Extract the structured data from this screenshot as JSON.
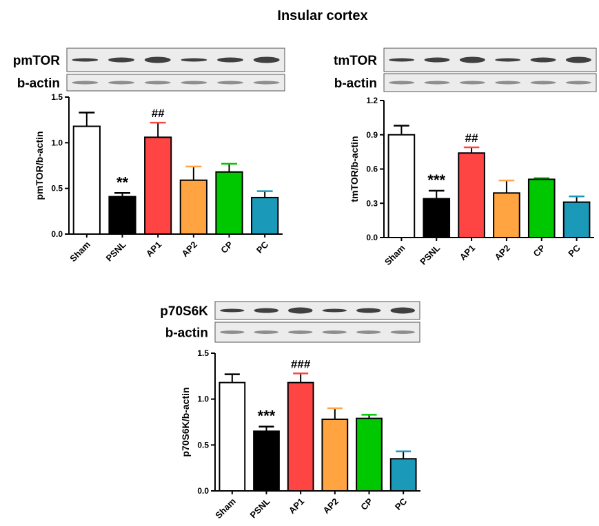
{
  "title": "Insular cortex",
  "chart_data": [
    {
      "type": "bar",
      "blot_labels": [
        "pmTOR",
        "b-actin"
      ],
      "ylabel": "pmTOR/b-actin",
      "categories": [
        "Sham",
        "PSNL",
        "AP1",
        "AP2",
        "CP",
        "PC"
      ],
      "values": [
        1.18,
        0.41,
        1.06,
        0.59,
        0.68,
        0.4
      ],
      "errors": [
        0.15,
        0.04,
        0.16,
        0.15,
        0.09,
        0.07
      ],
      "annotations": [
        null,
        "**",
        "##",
        null,
        null,
        null
      ],
      "colors": [
        "#ffffff",
        "#000000",
        "#ff4444",
        "#ffa440",
        "#00c800",
        "#1a9ab8"
      ],
      "ylim": [
        0,
        1.5
      ],
      "yticks": [
        {
          "value": 0,
          "label": "0.0"
        },
        0.5,
        {
          "value": 1,
          "label": "1.0"
        },
        1.5
      ]
    },
    {
      "type": "bar",
      "blot_labels": [
        "tmTOR",
        "b-actin"
      ],
      "ylabel": "tmTOR/b-actin",
      "categories": [
        "Sham",
        "PSNL",
        "AP1",
        "AP2",
        "CP",
        "PC"
      ],
      "values": [
        0.9,
        0.34,
        0.74,
        0.39,
        0.51,
        0.31
      ],
      "errors": [
        0.08,
        0.07,
        0.05,
        0.11,
        0.01,
        0.05
      ],
      "annotations": [
        null,
        "***",
        "##",
        null,
        null,
        null
      ],
      "colors": [
        "#ffffff",
        "#000000",
        "#ff4444",
        "#ffa440",
        "#00c800",
        "#1a9ab8"
      ],
      "ylim": [
        0,
        1.2
      ],
      "yticks": [
        {
          "value": 0,
          "label": "0.0"
        },
        0.3,
        0.6,
        0.9,
        1.2
      ]
    },
    {
      "type": "bar",
      "blot_labels": [
        "p70S6K",
        "b-actin"
      ],
      "ylabel": "p70S6K/b-actin",
      "categories": [
        "Sham",
        "PSNL",
        "AP1",
        "AP2",
        "CP",
        "PC"
      ],
      "values": [
        1.18,
        0.65,
        1.18,
        0.78,
        0.79,
        0.35
      ],
      "errors": [
        0.09,
        0.05,
        0.1,
        0.12,
        0.04,
        0.08
      ],
      "annotations": [
        null,
        "***",
        "###",
        null,
        null,
        null
      ],
      "colors": [
        "#ffffff",
        "#000000",
        "#ff4444",
        "#ffa440",
        "#00c800",
        "#1a9ab8"
      ],
      "ylim": [
        0,
        1.5
      ],
      "yticks": [
        {
          "value": 0,
          "label": "0.0"
        },
        0.5,
        {
          "value": 1,
          "label": "1.0"
        },
        1.5
      ]
    }
  ]
}
